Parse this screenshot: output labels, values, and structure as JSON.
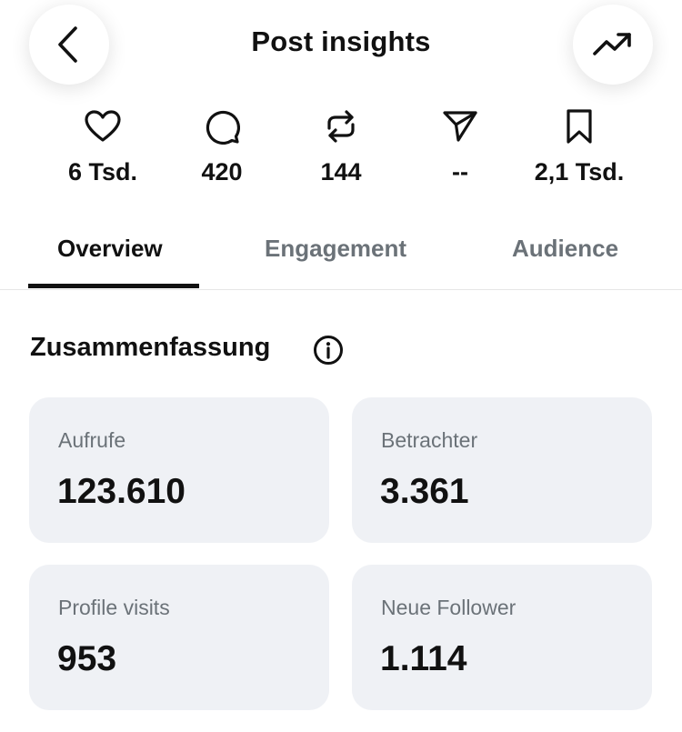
{
  "header": {
    "title": "Post insights"
  },
  "metrics": [
    {
      "icon": "heart-icon",
      "value": "6 Tsd."
    },
    {
      "icon": "comment-icon",
      "value": "420"
    },
    {
      "icon": "repost-icon",
      "value": "144"
    },
    {
      "icon": "share-icon",
      "value": "--"
    },
    {
      "icon": "bookmark-icon",
      "value": "2,1 Tsd."
    }
  ],
  "tabs": [
    {
      "label": "Overview",
      "active": true
    },
    {
      "label": "Engagement",
      "active": false
    },
    {
      "label": "Audience",
      "active": false
    }
  ],
  "summary": {
    "title": "Zusammenfassung",
    "cards": [
      {
        "label": "Aufrufe",
        "value": "123.610"
      },
      {
        "label": "Betrachter",
        "value": "3.361"
      },
      {
        "label": "Profile visits",
        "value": "953"
      },
      {
        "label": "Neue Follower",
        "value": "1.114"
      }
    ]
  },
  "colors": {
    "text": "#111111",
    "muted": "#6b7278",
    "card_bg": "#eff1f5"
  }
}
